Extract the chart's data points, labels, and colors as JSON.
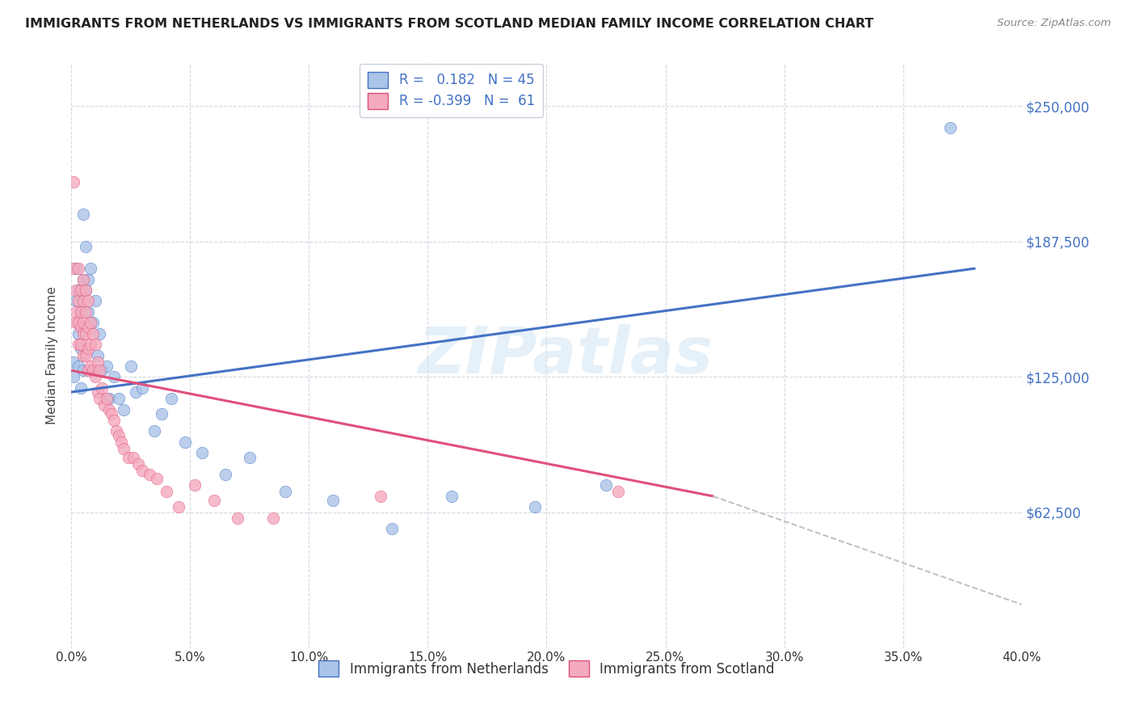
{
  "title": "IMMIGRANTS FROM NETHERLANDS VS IMMIGRANTS FROM SCOTLAND MEDIAN FAMILY INCOME CORRELATION CHART",
  "source": "Source: ZipAtlas.com",
  "ylabel": "Median Family Income",
  "yticks": [
    0,
    62500,
    125000,
    187500,
    250000
  ],
  "ytick_labels": [
    "",
    "$62,500",
    "$125,000",
    "$187,500",
    "$250,000"
  ],
  "xlim": [
    0.0,
    0.4
  ],
  "ylim": [
    0,
    270000
  ],
  "watermark": "ZIPatlas",
  "color_netherlands": "#aac4e8",
  "color_scotland": "#f4aabe",
  "line_color_netherlands": "#4472c4",
  "line_color_scotland": "#e0507a",
  "nl_line_x0": 0.0,
  "nl_line_y0": 118000,
  "nl_line_x1": 0.38,
  "nl_line_y1": 175000,
  "sc_line_x0": 0.0,
  "sc_line_y0": 128000,
  "sc_line_x1_solid": 0.27,
  "sc_line_y1_solid": 70000,
  "sc_line_x1_dash": 0.4,
  "sc_line_y1_dash": 20000,
  "netherlands_x": [
    0.001,
    0.001,
    0.002,
    0.002,
    0.003,
    0.003,
    0.003,
    0.004,
    0.004,
    0.004,
    0.005,
    0.005,
    0.005,
    0.006,
    0.006,
    0.007,
    0.007,
    0.008,
    0.009,
    0.01,
    0.011,
    0.012,
    0.013,
    0.015,
    0.016,
    0.018,
    0.02,
    0.022,
    0.025,
    0.027,
    0.03,
    0.035,
    0.038,
    0.042,
    0.048,
    0.055,
    0.065,
    0.075,
    0.09,
    0.11,
    0.135,
    0.16,
    0.195,
    0.225,
    0.37
  ],
  "netherlands_y": [
    125000,
    132000,
    160000,
    175000,
    165000,
    145000,
    130000,
    155000,
    138000,
    120000,
    170000,
    200000,
    128000,
    185000,
    165000,
    170000,
    155000,
    175000,
    150000,
    160000,
    135000,
    145000,
    128000,
    130000,
    115000,
    125000,
    115000,
    110000,
    130000,
    118000,
    120000,
    100000,
    108000,
    115000,
    95000,
    90000,
    80000,
    88000,
    72000,
    68000,
    55000,
    70000,
    65000,
    75000,
    240000
  ],
  "scotland_x": [
    0.001,
    0.001,
    0.002,
    0.002,
    0.002,
    0.003,
    0.003,
    0.003,
    0.003,
    0.004,
    0.004,
    0.004,
    0.004,
    0.005,
    0.005,
    0.005,
    0.005,
    0.005,
    0.006,
    0.006,
    0.006,
    0.006,
    0.007,
    0.007,
    0.007,
    0.007,
    0.008,
    0.008,
    0.008,
    0.009,
    0.009,
    0.01,
    0.01,
    0.011,
    0.011,
    0.012,
    0.012,
    0.013,
    0.014,
    0.015,
    0.016,
    0.017,
    0.018,
    0.019,
    0.02,
    0.021,
    0.022,
    0.024,
    0.026,
    0.028,
    0.03,
    0.033,
    0.036,
    0.04,
    0.045,
    0.052,
    0.06,
    0.07,
    0.085,
    0.13,
    0.23
  ],
  "scotland_y": [
    215000,
    175000,
    165000,
    150000,
    155000,
    175000,
    160000,
    150000,
    140000,
    165000,
    155000,
    148000,
    140000,
    170000,
    160000,
    150000,
    145000,
    135000,
    165000,
    155000,
    145000,
    135000,
    160000,
    148000,
    138000,
    128000,
    150000,
    140000,
    130000,
    145000,
    128000,
    140000,
    125000,
    132000,
    118000,
    128000,
    115000,
    120000,
    112000,
    115000,
    110000,
    108000,
    105000,
    100000,
    98000,
    95000,
    92000,
    88000,
    88000,
    85000,
    82000,
    80000,
    78000,
    72000,
    65000,
    75000,
    68000,
    60000,
    60000,
    70000,
    72000
  ]
}
